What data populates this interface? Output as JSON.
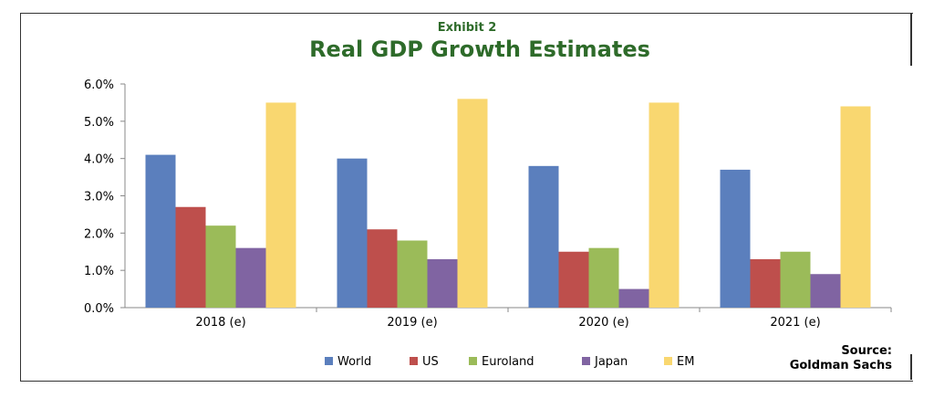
{
  "chart_data": {
    "type": "bar",
    "exhibit": "Exhibit 2",
    "title": "Real GDP Growth Estimates",
    "categories": [
      "2018 (e)",
      "2019 (e)",
      "2020 (e)",
      "2021 (e)"
    ],
    "series": [
      {
        "name": "World",
        "color": "#5b7fbd",
        "values": [
          4.1,
          4.0,
          3.8,
          3.7
        ]
      },
      {
        "name": "US",
        "color": "#be4f4c",
        "values": [
          2.7,
          2.1,
          1.5,
          1.3
        ]
      },
      {
        "name": "Euroland",
        "color": "#9bbb59",
        "values": [
          2.2,
          1.8,
          1.6,
          1.5
        ]
      },
      {
        "name": "Japan",
        "color": "#8064a2",
        "values": [
          1.6,
          1.3,
          0.5,
          0.9
        ]
      },
      {
        "name": "EM",
        "color": "#f9d770",
        "values": [
          5.5,
          5.6,
          5.5,
          5.4
        ]
      }
    ],
    "ylim": [
      0,
      6
    ],
    "yticks": [
      "0.0%",
      "1.0%",
      "2.0%",
      "3.0%",
      "4.0%",
      "5.0%",
      "6.0%"
    ],
    "grid": false,
    "legend_position": "bottom",
    "source_line1": "Source:",
    "source_line2": "Goldman Sachs"
  }
}
